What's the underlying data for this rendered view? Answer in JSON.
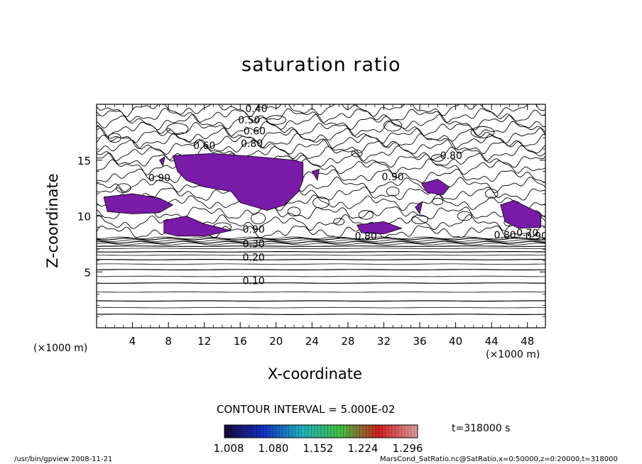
{
  "chart_data": {
    "type": "contour",
    "title": "saturation ratio",
    "xlabel": "X-coordinate",
    "ylabel": "Z-coordinate",
    "x_unit": "(×1000 m)",
    "y_unit": "(×1000 m)",
    "xlim": [
      0,
      50
    ],
    "ylim": [
      0,
      20
    ],
    "x_ticks": [
      "4",
      "8",
      "12",
      "16",
      "20",
      "24",
      "28",
      "32",
      "36",
      "40",
      "44",
      "48"
    ],
    "y_ticks": [
      "5",
      "10",
      "15"
    ],
    "contour_interval_label": "CONTOUR INTERVAL = 5.000E-02",
    "contour_labels": [
      "0.10",
      "0.20",
      "0.30",
      "0.90",
      "0.40",
      "0.50",
      "0.60",
      "0.80",
      "0.60",
      "0.80",
      "0.90",
      "0.90",
      "0.80",
      "0.70",
      "0.80",
      "0.90"
    ],
    "supersaturated_fill_color": "#7a1aa8",
    "colorbar": {
      "tick_labels": [
        "1.008",
        "1.080",
        "1.152",
        "1.224",
        "1.296"
      ],
      "colors": [
        "#1a0a3a",
        "#1030c0",
        "#20b0c0",
        "#40c040",
        "#d02020",
        "#e0a0a0"
      ]
    },
    "time_label": "t=318000  s"
  },
  "footer": {
    "left": "/usr/bin/gpview  2008-11-21",
    "right": "MarsCond_SatRatio.nc@SatRatio,x=0:50000,z=0:20000,t=318000"
  }
}
